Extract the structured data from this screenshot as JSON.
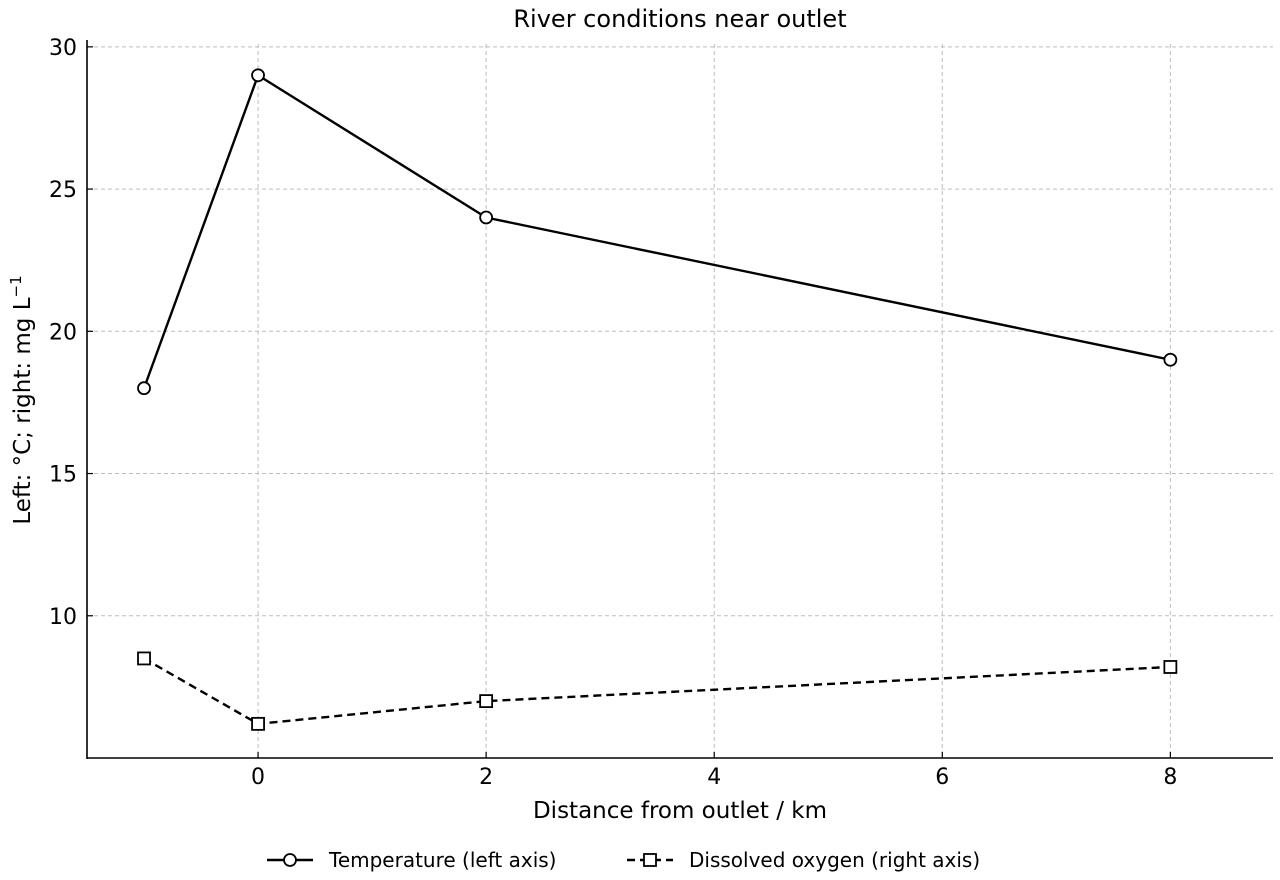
{
  "chart_data": {
    "type": "line",
    "title": "River conditions near outlet",
    "xlabel": "Distance from outlet / km",
    "ylabel": "Left: °C; right: mg L",
    "ylabel_superscript": "−1",
    "xlim": [
      -1.5,
      8.9
    ],
    "ylim": [
      5,
      30.1
    ],
    "xticks": [
      0,
      2,
      4,
      6,
      8
    ],
    "yticks": [
      10,
      15,
      20,
      25,
      30
    ],
    "grid": true,
    "legend_position": "bottom-center",
    "series": [
      {
        "name": "Temperature (left axis)",
        "marker": "circle",
        "line_style": "solid",
        "color": "#000000",
        "x": [
          -1,
          0,
          2,
          8
        ],
        "y": [
          18,
          29,
          24,
          19
        ]
      },
      {
        "name": "Dissolved oxygen (right axis)",
        "marker": "square",
        "line_style": "dashed",
        "color": "#000000",
        "x": [
          -1,
          0,
          2,
          8
        ],
        "y": [
          8.5,
          6.2,
          7.0,
          8.2
        ]
      }
    ]
  }
}
